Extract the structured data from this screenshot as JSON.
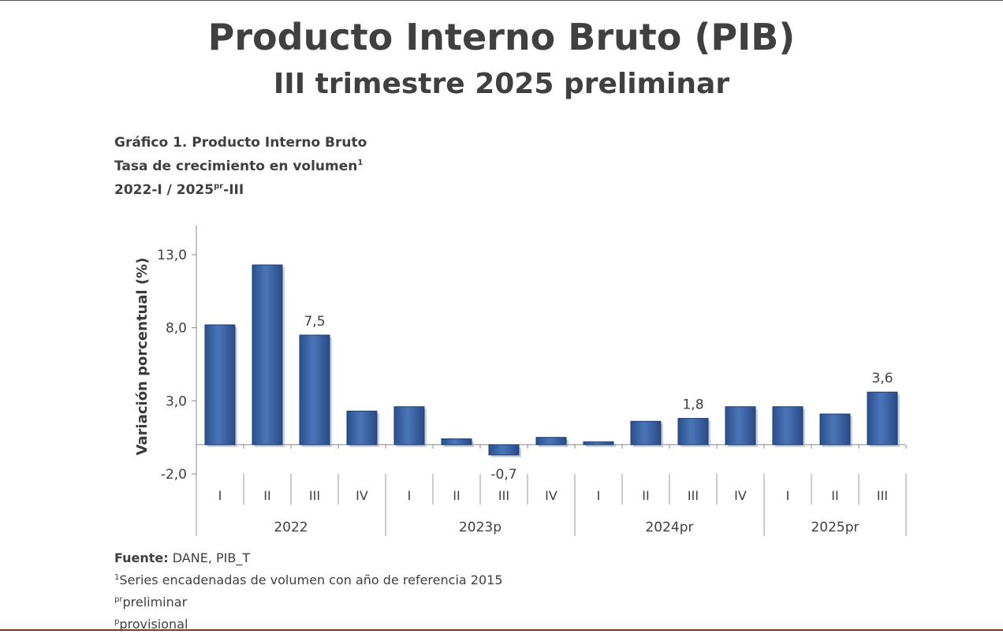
{
  "header": {
    "title": "Producto Interno Bruto (PIB)",
    "subtitle": "III trimestre 2025 preliminar"
  },
  "caption": {
    "line1": "Gráfico 1. Producto Interno Bruto",
    "line2_text": "Tasa de crecimiento en volumen",
    "line2_sup": "1",
    "line3_a": "2022-I / 2025",
    "line3_sup": "pr",
    "line3_b": "-III"
  },
  "chart_data": {
    "type": "bar",
    "ylabel": "Variación porcentual (%)",
    "ylim": [
      -2.0,
      13.0
    ],
    "yticks": [
      "13,0",
      "8,0",
      "3,0",
      "-2,0"
    ],
    "ytick_values": [
      13.0,
      8.0,
      3.0,
      -2.0
    ],
    "categories": [
      "I",
      "II",
      "III",
      "IV",
      "I",
      "II",
      "III",
      "IV",
      "I",
      "II",
      "III",
      "IV",
      "I",
      "II",
      "III"
    ],
    "groups": [
      {
        "label": "2022",
        "count": 4
      },
      {
        "label": "2023p",
        "count": 4
      },
      {
        "label": "2024pr",
        "count": 4
      },
      {
        "label": "2025pr",
        "count": 3
      }
    ],
    "values": [
      8.2,
      12.3,
      7.5,
      2.3,
      2.6,
      0.4,
      -0.7,
      0.5,
      0.2,
      1.6,
      1.8,
      2.6,
      2.6,
      2.1,
      3.6
    ],
    "data_labels": [
      {
        "index": 2,
        "text": "7,5"
      },
      {
        "index": 6,
        "text": "-0,7"
      },
      {
        "index": 10,
        "text": "1,8"
      },
      {
        "index": 14,
        "text": "3,6"
      }
    ],
    "bar_color": "#3f67a8",
    "bar_edge_color": "#1f3f73"
  },
  "footer": {
    "source_label": "Fuente:",
    "source_text": " DANE, PIB_T",
    "note1_sup": "1",
    "note1_text": "Series encadenadas de volumen con año de referencia 2015",
    "note2_sup": "pr",
    "note2_text": "preliminar",
    "note3_sup": "p",
    "note3_text": "provisional"
  }
}
